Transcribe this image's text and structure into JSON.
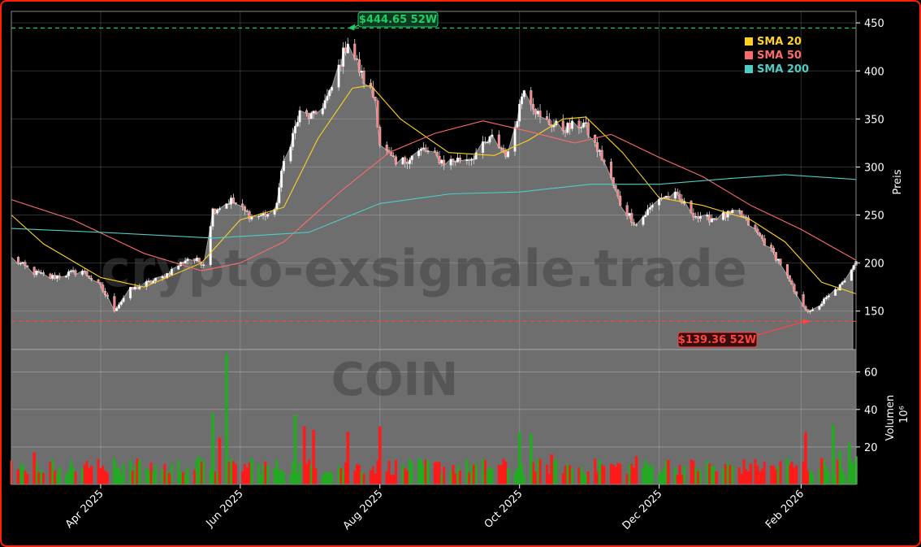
{
  "colors": {
    "up": "#22aa22",
    "down": "#ff1a1a",
    "sma20": "#ffd21f",
    "sma50": "#ff6b6b",
    "sma200": "#4ecdc4",
    "high": "#22cc66",
    "low": "#ff4444",
    "bg": "#000000",
    "area": "#6e6e6e"
  },
  "chart_data": [
    {
      "type": "candlestick",
      "ylabel": "Preis",
      "ylim": [
        110,
        462
      ],
      "yticks": [
        150,
        200,
        250,
        300,
        350,
        400,
        450
      ],
      "x_range": [
        "2025-02-21",
        "2026-02-25"
      ],
      "xticks": [
        "2025-04-01",
        "2025-06-01",
        "2025-08-01",
        "2025-10-01",
        "2025-12-01",
        "2026-02-01"
      ],
      "xtick_labels": [
        "Apr 2025",
        "Jun 2025",
        "Aug 2025",
        "Oct 2025",
        "Dec 2025",
        "Feb 2026"
      ],
      "grid": true,
      "legend_position": "top-right",
      "legend": [
        "SMA 20",
        "SMA 50",
        "SMA 200"
      ],
      "watermark": "crypto-exsignale.trade",
      "annotations": [
        {
          "text": "$444.65 52W",
          "date": "2025-07-18",
          "value": 444.65,
          "kind": "52w-high"
        },
        {
          "text": "$139.36 52W",
          "date": "2026-02-05",
          "value": 139.36,
          "kind": "52w-low"
        }
      ],
      "close": [
        [
          "2025-02-21",
          205
        ],
        [
          "2025-03-03",
          190
        ],
        [
          "2025-03-10",
          185
        ],
        [
          "2025-03-24",
          192
        ],
        [
          "2025-04-01",
          175
        ],
        [
          "2025-04-07",
          152
        ],
        [
          "2025-04-14",
          172
        ],
        [
          "2025-04-28",
          185
        ],
        [
          "2025-05-09",
          205
        ],
        [
          "2025-05-16",
          200
        ],
        [
          "2025-05-20",
          255
        ],
        [
          "2025-05-28",
          265
        ],
        [
          "2025-06-06",
          248
        ],
        [
          "2025-06-16",
          252
        ],
        [
          "2025-06-20",
          305
        ],
        [
          "2025-06-27",
          355
        ],
        [
          "2025-07-03",
          352
        ],
        [
          "2025-07-10",
          375
        ],
        [
          "2025-07-18",
          432
        ],
        [
          "2025-07-24",
          395
        ],
        [
          "2025-07-30",
          370
        ],
        [
          "2025-08-01",
          325
        ],
        [
          "2025-08-08",
          302
        ],
        [
          "2025-08-20",
          318
        ],
        [
          "2025-08-29",
          305
        ],
        [
          "2025-09-10",
          310
        ],
        [
          "2025-09-19",
          330
        ],
        [
          "2025-09-26",
          312
        ],
        [
          "2025-10-03",
          385
        ],
        [
          "2025-10-10",
          350
        ],
        [
          "2025-10-20",
          340
        ],
        [
          "2025-10-29",
          345
        ],
        [
          "2025-11-07",
          305
        ],
        [
          "2025-11-14",
          262
        ],
        [
          "2025-11-21",
          240
        ],
        [
          "2025-12-01",
          268
        ],
        [
          "2025-12-08",
          270
        ],
        [
          "2025-12-19",
          245
        ],
        [
          "2026-01-05",
          252
        ],
        [
          "2026-01-15",
          225
        ],
        [
          "2026-01-23",
          200
        ],
        [
          "2026-01-30",
          165
        ],
        [
          "2026-02-05",
          148
        ],
        [
          "2026-02-13",
          165
        ],
        [
          "2026-02-20",
          180
        ],
        [
          "2026-02-25",
          205
        ]
      ],
      "series": [
        {
          "name": "SMA 20",
          "values": [
            [
              "2025-02-21",
              250
            ],
            [
              "2025-03-07",
              220
            ],
            [
              "2025-04-01",
              185
            ],
            [
              "2025-04-20",
              175
            ],
            [
              "2025-05-15",
              200
            ],
            [
              "2025-06-01",
              245
            ],
            [
              "2025-06-20",
              258
            ],
            [
              "2025-07-05",
              330
            ],
            [
              "2025-07-20",
              382
            ],
            [
              "2025-07-28",
              385
            ],
            [
              "2025-08-10",
              350
            ],
            [
              "2025-08-31",
              315
            ],
            [
              "2025-09-20",
              312
            ],
            [
              "2025-10-05",
              328
            ],
            [
              "2025-10-20",
              350
            ],
            [
              "2025-10-30",
              352
            ],
            [
              "2025-11-15",
              315
            ],
            [
              "2025-12-01",
              268
            ],
            [
              "2025-12-20",
              260
            ],
            [
              "2026-01-10",
              245
            ],
            [
              "2026-01-25",
              222
            ],
            [
              "2026-02-10",
              180
            ],
            [
              "2026-02-25",
              168
            ]
          ]
        },
        {
          "name": "SMA 50",
          "values": [
            [
              "2025-02-21",
              266
            ],
            [
              "2025-03-20",
              245
            ],
            [
              "2025-04-20",
              210
            ],
            [
              "2025-05-15",
              192
            ],
            [
              "2025-06-01",
              200
            ],
            [
              "2025-06-20",
              222
            ],
            [
              "2025-07-15",
              275
            ],
            [
              "2025-08-05",
              315
            ],
            [
              "2025-08-25",
              335
            ],
            [
              "2025-09-15",
              348
            ],
            [
              "2025-10-05",
              337
            ],
            [
              "2025-10-25",
              325
            ],
            [
              "2025-11-10",
              334
            ],
            [
              "2025-12-01",
              310
            ],
            [
              "2025-12-20",
              290
            ],
            [
              "2026-01-10",
              260
            ],
            [
              "2026-02-01",
              235
            ],
            [
              "2026-02-25",
              203
            ]
          ]
        },
        {
          "name": "SMA 200",
          "values": [
            [
              "2025-02-21",
              236
            ],
            [
              "2025-04-01",
              232
            ],
            [
              "2025-05-20",
              226
            ],
            [
              "2025-07-01",
              232
            ],
            [
              "2025-08-01",
              262
            ],
            [
              "2025-09-01",
              272
            ],
            [
              "2025-10-01",
              274
            ],
            [
              "2025-11-01",
              282
            ],
            [
              "2025-12-01",
              282
            ],
            [
              "2026-01-01",
              288
            ],
            [
              "2026-01-25",
              292
            ],
            [
              "2026-02-25",
              287
            ]
          ]
        }
      ]
    },
    {
      "type": "bar",
      "ylabel": "Volumen",
      "ylabel_exponent": "10⁶",
      "ylim": [
        0,
        72
      ],
      "yticks": [
        20,
        40,
        60
      ],
      "grid": true,
      "values": [
        [
          "2025-02-24",
          8,
          "down"
        ],
        [
          "2025-03-03",
          17,
          "down"
        ],
        [
          "2025-03-14",
          9,
          "up"
        ],
        [
          "2025-03-28",
          10,
          "down"
        ],
        [
          "2025-04-07",
          14,
          "up"
        ],
        [
          "2025-04-18",
          13,
          "up"
        ],
        [
          "2025-05-01",
          6,
          "down"
        ],
        [
          "2025-05-14",
          15,
          "up"
        ],
        [
          "2025-05-20",
          38,
          "up"
        ],
        [
          "2025-05-23",
          25,
          "down"
        ],
        [
          "2025-05-26",
          70,
          "up"
        ],
        [
          "2025-06-06",
          14,
          "up"
        ],
        [
          "2025-06-25",
          37,
          "up"
        ],
        [
          "2025-06-29",
          31,
          "down"
        ],
        [
          "2025-07-03",
          29,
          "down"
        ],
        [
          "2025-07-18",
          28,
          "down"
        ],
        [
          "2025-08-01",
          31,
          "down"
        ],
        [
          "2025-08-22",
          13,
          "up"
        ],
        [
          "2025-10-01",
          28,
          "up"
        ],
        [
          "2025-10-06",
          27,
          "up"
        ],
        [
          "2025-10-15",
          16,
          "down"
        ],
        [
          "2025-11-05",
          13,
          "up"
        ],
        [
          "2025-11-21",
          15,
          "down"
        ],
        [
          "2025-12-05",
          13,
          "down"
        ],
        [
          "2025-12-26",
          7,
          "down"
        ],
        [
          "2026-01-10",
          11,
          "down"
        ],
        [
          "2026-01-26",
          14,
          "up"
        ],
        [
          "2026-02-03",
          28,
          "down"
        ],
        [
          "2026-02-10",
          14,
          "down"
        ],
        [
          "2026-02-15",
          32,
          "up"
        ],
        [
          "2026-02-18",
          18,
          "up"
        ],
        [
          "2026-02-22",
          22,
          "up"
        ],
        [
          "2026-02-25",
          15,
          "up"
        ]
      ]
    }
  ]
}
